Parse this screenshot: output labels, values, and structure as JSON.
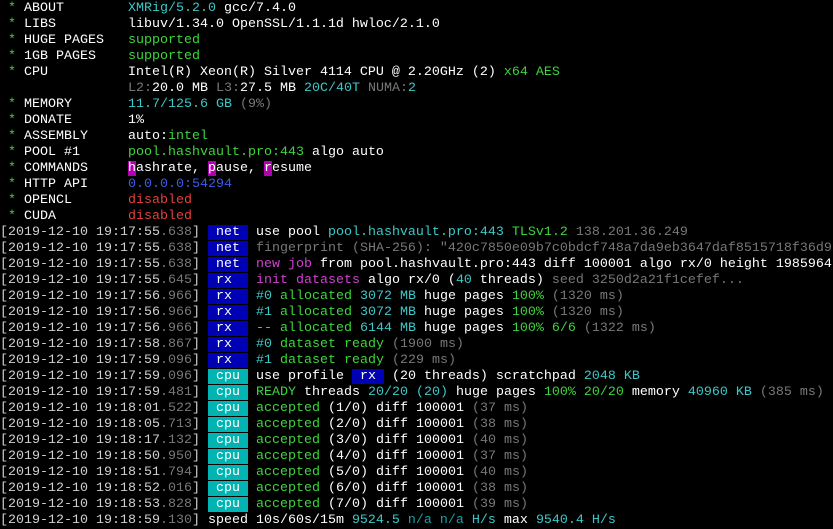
{
  "palette": {
    "w": "#d0d0d0",
    "W": "#ffffff",
    "g": "#3fd33f",
    "c": "#3cc8c8",
    "C": "#1aa0a0",
    "d": "#787878",
    "m": "#d040d0",
    "u": "#3c5ce8",
    "r": "#e04040",
    "blue": "#0000b4",
    "cyan": "#00b4b4",
    "mag": "#b000b0"
  },
  "lines": [
    [
      [
        " * ",
        "g"
      ],
      [
        "ABOUT        ",
        "W"
      ],
      [
        "XMRig/5.2.0",
        "c"
      ],
      [
        " gcc/7.4.0",
        "W"
      ]
    ],
    [
      [
        " * ",
        "g"
      ],
      [
        "LIBS         ",
        "W"
      ],
      [
        "libuv/1.34.0 OpenSSL/1.1.1d hwloc/2.1.0",
        "W"
      ]
    ],
    [
      [
        " * ",
        "g"
      ],
      [
        "HUGE PAGES   ",
        "W"
      ],
      [
        "supported",
        "g"
      ]
    ],
    [
      [
        " * ",
        "g"
      ],
      [
        "1GB PAGES    ",
        "W"
      ],
      [
        "supported",
        "g"
      ]
    ],
    [
      [
        " * ",
        "g"
      ],
      [
        "CPU          ",
        "W"
      ],
      [
        "Intel(R) Xeon(R) Silver 4114 CPU @ 2.20GHz (2)",
        "W"
      ],
      [
        " x64 AES",
        "g"
      ]
    ],
    [
      [
        "                ",
        "w"
      ],
      [
        "L2:",
        "d"
      ],
      [
        "20.0 MB ",
        "W"
      ],
      [
        "L3:",
        "d"
      ],
      [
        "27.5 MB ",
        "W"
      ],
      [
        "20C/40T",
        "c"
      ],
      [
        " NUMA:",
        "d"
      ],
      [
        "2",
        "c"
      ]
    ],
    [
      [
        " * ",
        "g"
      ],
      [
        "MEMORY       ",
        "W"
      ],
      [
        "11.7/125.6 GB",
        "c"
      ],
      [
        " (9%)",
        "d"
      ]
    ],
    [
      [
        " * ",
        "g"
      ],
      [
        "DONATE       ",
        "W"
      ],
      [
        "1%",
        "W"
      ]
    ],
    [
      [
        " * ",
        "g"
      ],
      [
        "ASSEMBLY     ",
        "W"
      ],
      [
        "auto:",
        "W"
      ],
      [
        "intel",
        "g"
      ]
    ],
    [
      [
        " * ",
        "g"
      ],
      [
        "POOL #1      ",
        "W"
      ],
      [
        "pool.hashvault.pro:443",
        "g"
      ],
      [
        " algo auto",
        "W"
      ]
    ],
    [
      [
        " * ",
        "g"
      ],
      [
        "COMMANDS     ",
        "W"
      ],
      [
        "h",
        "W",
        "mag"
      ],
      [
        "ashrate, ",
        "W"
      ],
      [
        "p",
        "W",
        "mag"
      ],
      [
        "ause, ",
        "W"
      ],
      [
        "r",
        "W",
        "mag"
      ],
      [
        "esume",
        "W"
      ]
    ],
    [
      [
        " * ",
        "g"
      ],
      [
        "HTTP API     ",
        "W"
      ],
      [
        "0.0.0.0:54294",
        "u"
      ]
    ],
    [
      [
        " * ",
        "g"
      ],
      [
        "OPENCL       ",
        "W"
      ],
      [
        "disabled",
        "r"
      ]
    ],
    [
      [
        " * ",
        "g"
      ],
      [
        "CUDA         ",
        "W"
      ],
      [
        "disabled",
        "r"
      ]
    ],
    [
      [
        "[2019-12-10 19:17:55",
        "w"
      ],
      [
        ".638",
        "d"
      ],
      [
        "] ",
        "w"
      ],
      [
        " net ",
        "W",
        "blue"
      ],
      [
        " ",
        "w"
      ],
      [
        "use pool ",
        "W"
      ],
      [
        "pool.hashvault.pro:443",
        "c"
      ],
      [
        " TLSv1.2",
        "g"
      ],
      [
        " 138.201.36.249",
        "d"
      ]
    ],
    [
      [
        "[2019-12-10 19:17:55",
        "w"
      ],
      [
        ".638",
        "d"
      ],
      [
        "] ",
        "w"
      ],
      [
        " net ",
        "W",
        "blue"
      ],
      [
        " ",
        "w"
      ],
      [
        "fingerprint (SHA-256): \"420c7850e09b7c0bdcf748a7da9eb3647daf8515718f36d9",
        "d"
      ]
    ],
    [
      [
        "[2019-12-10 19:17:55",
        "w"
      ],
      [
        ".638",
        "d"
      ],
      [
        "] ",
        "w"
      ],
      [
        " net ",
        "W",
        "blue"
      ],
      [
        " ",
        "w"
      ],
      [
        "new job",
        "m"
      ],
      [
        " from pool.hashvault.pro:443 diff 100001 algo rx/0 height 1985964",
        "W"
      ]
    ],
    [
      [
        "[2019-12-10 19:17:55",
        "w"
      ],
      [
        ".645",
        "d"
      ],
      [
        "] ",
        "w"
      ],
      [
        " rx  ",
        "W",
        "blue"
      ],
      [
        " ",
        "w"
      ],
      [
        "init datasets",
        "m"
      ],
      [
        " algo rx/0 (",
        "W"
      ],
      [
        "40",
        "c"
      ],
      [
        " threads)",
        "W"
      ],
      [
        " seed 3250d2a21f1cefef...",
        "d"
      ]
    ],
    [
      [
        "[2019-12-10 19:17:56",
        "w"
      ],
      [
        ".966",
        "d"
      ],
      [
        "] ",
        "w"
      ],
      [
        " rx  ",
        "W",
        "blue"
      ],
      [
        " ",
        "w"
      ],
      [
        "#0",
        "c"
      ],
      [
        " allocated",
        "g"
      ],
      [
        " 3072 MB",
        "c"
      ],
      [
        " huge pages ",
        "W"
      ],
      [
        "100%",
        "g"
      ],
      [
        " (1320 ms)",
        "d"
      ]
    ],
    [
      [
        "[2019-12-10 19:17:56",
        "w"
      ],
      [
        ".966",
        "d"
      ],
      [
        "] ",
        "w"
      ],
      [
        " rx  ",
        "W",
        "blue"
      ],
      [
        " ",
        "w"
      ],
      [
        "#1",
        "c"
      ],
      [
        " allocated",
        "g"
      ],
      [
        " 3072 MB",
        "c"
      ],
      [
        " huge pages ",
        "W"
      ],
      [
        "100%",
        "g"
      ],
      [
        " (1320 ms)",
        "d"
      ]
    ],
    [
      [
        "[2019-12-10 19:17:56",
        "w"
      ],
      [
        ".966",
        "d"
      ],
      [
        "] ",
        "w"
      ],
      [
        " rx  ",
        "W",
        "blue"
      ],
      [
        " ",
        "w"
      ],
      [
        "--",
        "c"
      ],
      [
        " allocated",
        "g"
      ],
      [
        " 6144 MB",
        "c"
      ],
      [
        " huge pages ",
        "W"
      ],
      [
        "100% 6/6",
        "g"
      ],
      [
        " (1322 ms)",
        "d"
      ]
    ],
    [
      [
        "[2019-12-10 19:17:58",
        "w"
      ],
      [
        ".867",
        "d"
      ],
      [
        "] ",
        "w"
      ],
      [
        " rx  ",
        "W",
        "blue"
      ],
      [
        " ",
        "w"
      ],
      [
        "#0",
        "c"
      ],
      [
        " dataset ready",
        "g"
      ],
      [
        " (1900 ms)",
        "d"
      ]
    ],
    [
      [
        "[2019-12-10 19:17:59",
        "w"
      ],
      [
        ".096",
        "d"
      ],
      [
        "] ",
        "w"
      ],
      [
        " rx  ",
        "W",
        "blue"
      ],
      [
        " ",
        "w"
      ],
      [
        "#1",
        "c"
      ],
      [
        " dataset ready",
        "g"
      ],
      [
        " (229 ms)",
        "d"
      ]
    ],
    [
      [
        "[2019-12-10 19:17:59",
        "w"
      ],
      [
        ".096",
        "d"
      ],
      [
        "] ",
        "w"
      ],
      [
        " cpu ",
        "W",
        "cyan"
      ],
      [
        " ",
        "w"
      ],
      [
        "use profile ",
        "W"
      ],
      [
        " rx ",
        "W",
        "blue"
      ],
      [
        " (20 threads)",
        "W"
      ],
      [
        " scratchpad ",
        "W"
      ],
      [
        "2048 KB",
        "c"
      ]
    ],
    [
      [
        "[2019-12-10 19:17:59",
        "w"
      ],
      [
        ".481",
        "d"
      ],
      [
        "] ",
        "w"
      ],
      [
        " cpu ",
        "W",
        "cyan"
      ],
      [
        " ",
        "w"
      ],
      [
        "READY",
        "g"
      ],
      [
        " threads ",
        "W"
      ],
      [
        "20/20",
        "c"
      ],
      [
        " (20)",
        "c"
      ],
      [
        " huge pages ",
        "W"
      ],
      [
        "100% 20/20",
        "g"
      ],
      [
        " memory ",
        "W"
      ],
      [
        "40960 KB",
        "c"
      ],
      [
        " (385 ms)",
        "d"
      ]
    ],
    [
      [
        "[2019-12-10 19:18:01",
        "w"
      ],
      [
        ".522",
        "d"
      ],
      [
        "] ",
        "w"
      ],
      [
        " cpu ",
        "W",
        "cyan"
      ],
      [
        " ",
        "w"
      ],
      [
        "accepted",
        "g"
      ],
      [
        " (1/0) diff ",
        "W"
      ],
      [
        "100001",
        "W"
      ],
      [
        " (37 ms)",
        "d"
      ]
    ],
    [
      [
        "[2019-12-10 19:18:05",
        "w"
      ],
      [
        ".713",
        "d"
      ],
      [
        "] ",
        "w"
      ],
      [
        " cpu ",
        "W",
        "cyan"
      ],
      [
        " ",
        "w"
      ],
      [
        "accepted",
        "g"
      ],
      [
        " (2/0) diff ",
        "W"
      ],
      [
        "100001",
        "W"
      ],
      [
        " (38 ms)",
        "d"
      ]
    ],
    [
      [
        "[2019-12-10 19:18:17",
        "w"
      ],
      [
        ".132",
        "d"
      ],
      [
        "] ",
        "w"
      ],
      [
        " cpu ",
        "W",
        "cyan"
      ],
      [
        " ",
        "w"
      ],
      [
        "accepted",
        "g"
      ],
      [
        " (3/0) diff ",
        "W"
      ],
      [
        "100001",
        "W"
      ],
      [
        " (40 ms)",
        "d"
      ]
    ],
    [
      [
        "[2019-12-10 19:18:50",
        "w"
      ],
      [
        ".950",
        "d"
      ],
      [
        "] ",
        "w"
      ],
      [
        " cpu ",
        "W",
        "cyan"
      ],
      [
        " ",
        "w"
      ],
      [
        "accepted",
        "g"
      ],
      [
        " (4/0) diff ",
        "W"
      ],
      [
        "100001",
        "W"
      ],
      [
        " (37 ms)",
        "d"
      ]
    ],
    [
      [
        "[2019-12-10 19:18:51",
        "w"
      ],
      [
        ".794",
        "d"
      ],
      [
        "] ",
        "w"
      ],
      [
        " cpu ",
        "W",
        "cyan"
      ],
      [
        " ",
        "w"
      ],
      [
        "accepted",
        "g"
      ],
      [
        " (5/0) diff ",
        "W"
      ],
      [
        "100001",
        "W"
      ],
      [
        " (40 ms)",
        "d"
      ]
    ],
    [
      [
        "[2019-12-10 19:18:52",
        "w"
      ],
      [
        ".016",
        "d"
      ],
      [
        "] ",
        "w"
      ],
      [
        " cpu ",
        "W",
        "cyan"
      ],
      [
        " ",
        "w"
      ],
      [
        "accepted",
        "g"
      ],
      [
        " (6/0) diff ",
        "W"
      ],
      [
        "100001",
        "W"
      ],
      [
        " (38 ms)",
        "d"
      ]
    ],
    [
      [
        "[2019-12-10 19:18:53",
        "w"
      ],
      [
        ".828",
        "d"
      ],
      [
        "] ",
        "w"
      ],
      [
        " cpu ",
        "W",
        "cyan"
      ],
      [
        " ",
        "w"
      ],
      [
        "accepted",
        "g"
      ],
      [
        " (7/0) diff ",
        "W"
      ],
      [
        "100001",
        "W"
      ],
      [
        " (39 ms)",
        "d"
      ]
    ],
    [
      [
        "[2019-12-10 19:18:59",
        "w"
      ],
      [
        ".130",
        "d"
      ],
      [
        "] ",
        "w"
      ],
      [
        "speed 10s/60s/15m ",
        "W"
      ],
      [
        "9524.5",
        "c"
      ],
      [
        " n/a n/a",
        "C"
      ],
      [
        " H/s",
        "c"
      ],
      [
        " max ",
        "W"
      ],
      [
        "9540.4 H/s",
        "c"
      ]
    ]
  ]
}
